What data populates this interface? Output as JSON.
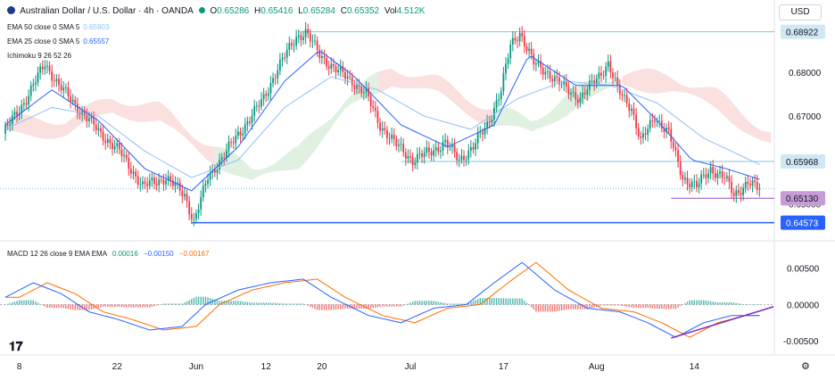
{
  "header": {
    "symbol_title": "Australian Dollar / U.S. Dollar · 4h · OANDA",
    "open_label": "O",
    "open": "0.65286",
    "high_label": "H",
    "high": "0.65416",
    "low_label": "L",
    "low": "0.65284",
    "close_label": "C",
    "close": "0.65352",
    "vol_label": "Vol",
    "vol": "4.512K",
    "currency_button": "USD"
  },
  "indicators": [
    {
      "label": "EMA 50 close 0 SMA 5",
      "value": "0.65903",
      "color": "#90bff9"
    },
    {
      "label": "EMA 25 close 0 SMA 5",
      "value": "0.65557",
      "color": "#2962ff"
    },
    {
      "label": "Ichimoku 9 26 52 26",
      "value": "",
      "color": "#131722"
    }
  ],
  "macd_legend": {
    "label": "MACD 12 26 close 9 EMA EMA",
    "hist": "0.00016",
    "macd": "−0.00150",
    "signal": "−0.00167",
    "hist_color": "#089981",
    "macd_color": "#2962ff",
    "signal_color": "#ff6d00"
  },
  "chart_data": {
    "type": "candlestick",
    "symbol": "AUD/USD",
    "interval": "4h",
    "price_range": [
      0.642,
      0.692
    ],
    "price_ticks": [
      "0.68000",
      "0.67000"
    ],
    "price_tags": [
      {
        "value": 0.68922,
        "label": "0.68922",
        "bg": "#cfe8f3",
        "fg": "#131722"
      },
      {
        "value": 0.65968,
        "label": "0.65968",
        "bg": "#cfe8f3",
        "fg": "#131722"
      },
      {
        "value": 0.6513,
        "label": "0.65130",
        "bg": "#c79bd6",
        "fg": "#131722"
      },
      {
        "value": 0.64573,
        "label": "0.64573",
        "bg": "#2962ff",
        "fg": "#ffffff"
      }
    ],
    "partial_tick_label": "0.65000",
    "x_ticks": [
      "8",
      "22",
      "Jun",
      "12",
      "20",
      "Jul",
      "17",
      "Aug",
      "14"
    ],
    "key_points": [
      [
        0,
        0.666
      ],
      [
        10,
        0.674
      ],
      [
        18,
        0.682
      ],
      [
        24,
        0.677
      ],
      [
        32,
        0.672
      ],
      [
        42,
        0.666
      ],
      [
        50,
        0.662
      ],
      [
        60,
        0.654
      ],
      [
        70,
        0.656
      ],
      [
        78,
        0.652
      ],
      [
        82,
        0.646
      ],
      [
        88,
        0.656
      ],
      [
        96,
        0.662
      ],
      [
        104,
        0.668
      ],
      [
        112,
        0.674
      ],
      [
        118,
        0.681
      ],
      [
        126,
        0.688
      ],
      [
        130,
        0.6892
      ],
      [
        136,
        0.684
      ],
      [
        142,
        0.681
      ],
      [
        150,
        0.678
      ],
      [
        156,
        0.675
      ],
      [
        162,
        0.668
      ],
      [
        168,
        0.664
      ],
      [
        176,
        0.66
      ],
      [
        184,
        0.662
      ],
      [
        190,
        0.664
      ],
      [
        196,
        0.66
      ],
      [
        202,
        0.663
      ],
      [
        208,
        0.668
      ],
      [
        214,
        0.676
      ],
      [
        218,
        0.686
      ],
      [
        222,
        0.6892
      ],
      [
        228,
        0.682
      ],
      [
        234,
        0.68
      ],
      [
        240,
        0.677
      ],
      [
        248,
        0.674
      ],
      [
        254,
        0.678
      ],
      [
        260,
        0.682
      ],
      [
        264,
        0.676
      ],
      [
        270,
        0.672
      ],
      [
        274,
        0.664
      ],
      [
        280,
        0.67
      ],
      [
        286,
        0.666
      ],
      [
        292,
        0.656
      ],
      [
        298,
        0.654
      ],
      [
        304,
        0.658
      ],
      [
        310,
        0.656
      ],
      [
        314,
        0.652
      ],
      [
        320,
        0.655
      ],
      [
        324,
        0.6535
      ]
    ],
    "ema_fast_points": [
      [
        0,
        0.668
      ],
      [
        20,
        0.676
      ],
      [
        40,
        0.669
      ],
      [
        60,
        0.658
      ],
      [
        80,
        0.653
      ],
      [
        100,
        0.663
      ],
      [
        120,
        0.678
      ],
      [
        135,
        0.685
      ],
      [
        150,
        0.679
      ],
      [
        170,
        0.668
      ],
      [
        190,
        0.663
      ],
      [
        210,
        0.668
      ],
      [
        225,
        0.684
      ],
      [
        245,
        0.677
      ],
      [
        265,
        0.677
      ],
      [
        280,
        0.669
      ],
      [
        295,
        0.66
      ],
      [
        310,
        0.658
      ],
      [
        324,
        0.6556
      ]
    ],
    "ema_slow_points": [
      [
        0,
        0.667
      ],
      [
        20,
        0.672
      ],
      [
        40,
        0.67
      ],
      [
        60,
        0.662
      ],
      [
        80,
        0.656
      ],
      [
        100,
        0.66
      ],
      [
        120,
        0.672
      ],
      [
        140,
        0.679
      ],
      [
        160,
        0.676
      ],
      [
        180,
        0.67
      ],
      [
        200,
        0.667
      ],
      [
        220,
        0.674
      ],
      [
        240,
        0.678
      ],
      [
        260,
        0.677
      ],
      [
        280,
        0.673
      ],
      [
        300,
        0.665
      ],
      [
        324,
        0.659
      ]
    ],
    "levels": [
      {
        "value": 0.68922,
        "from": 126,
        "to": 324,
        "color": "#7ec8e3"
      },
      {
        "value": 0.65968,
        "from": 170,
        "to": 324,
        "color": "#7ec8e3"
      },
      {
        "value": 0.6513,
        "from": 286,
        "to": 324,
        "color": "#9c4dbe"
      },
      {
        "value": 0.64573,
        "from": 80,
        "to": 324,
        "color": "#2962ff"
      }
    ],
    "macd_range": [
      -0.0062,
      0.0068
    ],
    "macd_ticks": [
      "0.00500",
      "0.00000",
      "-0.00500"
    ],
    "macd_key_points": [
      [
        0,
        0.001
      ],
      [
        12,
        0.003
      ],
      [
        24,
        0.0015
      ],
      [
        36,
        -0.001
      ],
      [
        48,
        -0.002
      ],
      [
        62,
        -0.0035
      ],
      [
        76,
        -0.003
      ],
      [
        86,
        0.0
      ],
      [
        100,
        0.002
      ],
      [
        114,
        0.003
      ],
      [
        128,
        0.0035
      ],
      [
        140,
        0.001
      ],
      [
        156,
        -0.0015
      ],
      [
        170,
        -0.0025
      ],
      [
        184,
        -0.0005
      ],
      [
        198,
        0.0
      ],
      [
        210,
        0.003
      ],
      [
        222,
        0.0058
      ],
      [
        236,
        0.002
      ],
      [
        250,
        -0.0005
      ],
      [
        264,
        -0.001
      ],
      [
        276,
        -0.0025
      ],
      [
        288,
        -0.0045
      ],
      [
        300,
        -0.0025
      ],
      [
        312,
        -0.0015
      ],
      [
        324,
        -0.0015
      ]
    ]
  }
}
